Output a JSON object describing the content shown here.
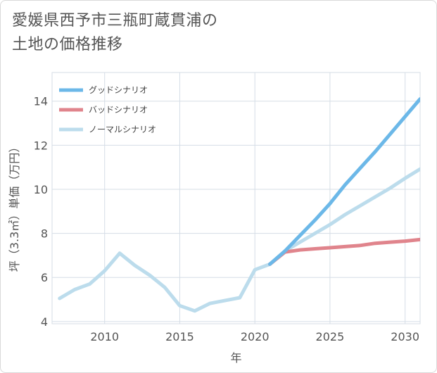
{
  "title_lines": [
    "愛媛県西予市三瓶町蔵貫浦の",
    "土地の価格推移"
  ],
  "chart_data": {
    "type": "line",
    "xlabel": "年",
    "ylabel": "坪（3.3㎡）単価（万円）",
    "xlim": [
      2006.5,
      2031
    ],
    "ylim": [
      3.9,
      15.3
    ],
    "xticks": [
      2010,
      2015,
      2020,
      2025,
      2030
    ],
    "yticks": [
      4,
      6,
      8,
      10,
      12,
      14
    ],
    "grid": true,
    "legend_position": "top-left",
    "series": [
      {
        "name": "グッドシナリオ",
        "color": "#6cb8e8",
        "x": [
          2021,
          2022,
          2023,
          2024,
          2025,
          2026,
          2027,
          2028,
          2029,
          2030,
          2031
        ],
        "y": [
          6.6,
          7.2,
          7.9,
          8.6,
          9.35,
          10.2,
          10.95,
          11.7,
          12.5,
          13.3,
          14.1
        ]
      },
      {
        "name": "バッドシナリオ",
        "color": "#e0848c",
        "x": [
          2021,
          2022,
          2023,
          2024,
          2025,
          2026,
          2027,
          2028,
          2029,
          2030,
          2031
        ],
        "y": [
          6.6,
          7.15,
          7.25,
          7.3,
          7.35,
          7.4,
          7.45,
          7.55,
          7.6,
          7.65,
          7.72
        ]
      },
      {
        "name": "ノーマルシナリオ",
        "color": "#bcdcec",
        "x": [
          2007,
          2008,
          2009,
          2010,
          2011,
          2012,
          2013,
          2014,
          2015,
          2016,
          2017,
          2018,
          2019,
          2020,
          2021,
          2022,
          2023,
          2024,
          2025,
          2026,
          2027,
          2028,
          2029,
          2030,
          2031
        ],
        "y": [
          5.05,
          5.45,
          5.7,
          6.3,
          7.1,
          6.55,
          6.1,
          5.55,
          4.72,
          4.48,
          4.82,
          4.95,
          5.08,
          6.35,
          6.6,
          7.2,
          7.6,
          8.0,
          8.4,
          8.85,
          9.25,
          9.65,
          10.05,
          10.5,
          10.92
        ]
      }
    ]
  }
}
